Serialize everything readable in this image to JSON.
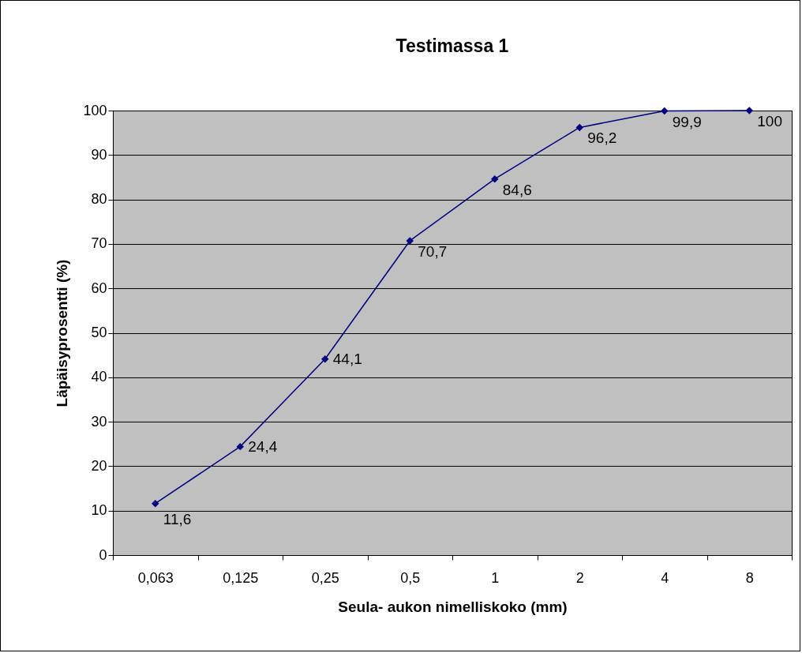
{
  "chart_data": {
    "type": "line",
    "title": "Testimassa 1",
    "xlabel": "Seula- aukon nimelliskoko (mm)",
    "ylabel": "Läpäisyprosentti (%)",
    "categories": [
      "0,063",
      "0,125",
      "0,25",
      "0,5",
      "1",
      "2",
      "4",
      "8"
    ],
    "series": [
      {
        "color": "#000080",
        "values": [
          11.6,
          24.4,
          44.1,
          70.7,
          84.6,
          96.2,
          99.9,
          100
        ],
        "value_labels": [
          "11,6",
          "24,4",
          "44,1",
          "70,7",
          "84,6",
          "96,2",
          "99,9",
          "100"
        ]
      }
    ],
    "ylim": [
      0,
      100
    ],
    "yticks": [
      0,
      10,
      20,
      30,
      40,
      50,
      60,
      70,
      80,
      90,
      100
    ],
    "grid": "y",
    "legend": false,
    "marker": "diamond",
    "line_style": "solid"
  }
}
